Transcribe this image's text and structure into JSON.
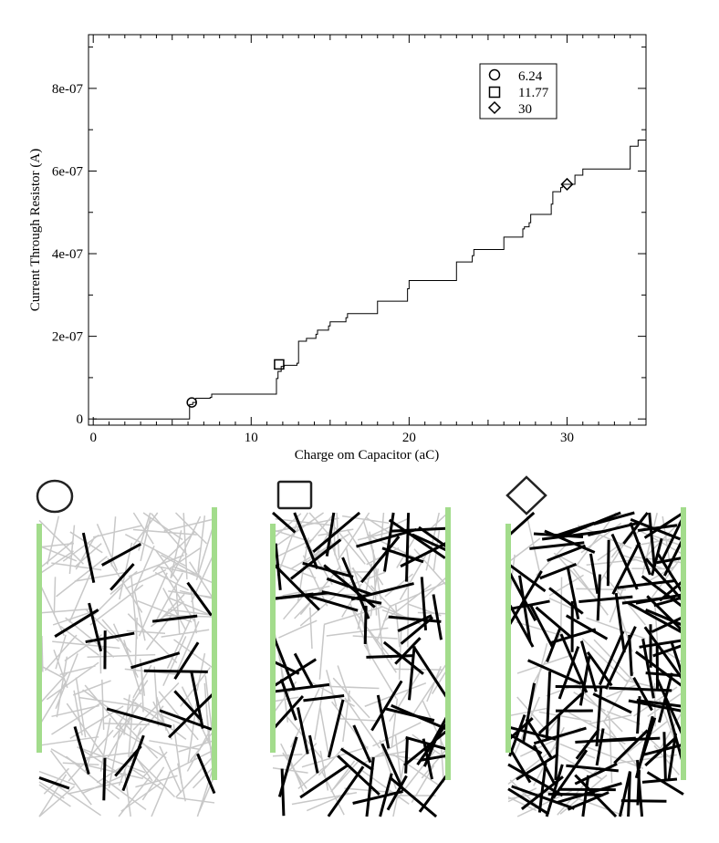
{
  "chart_data": {
    "type": "line",
    "xlabel": "Charge om Capacitor (aC)",
    "ylabel": "Current Through Resistor (A)",
    "xlim": [
      -0.3,
      35
    ],
    "ylim": [
      -1.5e-08,
      9.3e-07
    ],
    "x_ticks": [
      0,
      10,
      20,
      30
    ],
    "x_tick_labels": [
      "0",
      "10",
      "20",
      "30"
    ],
    "y_ticks": [
      0,
      2e-07,
      4e-07,
      6e-07,
      8e-07
    ],
    "y_tick_labels": [
      "0",
      "2e-07",
      "4e-07",
      "6e-07",
      "8e-07"
    ],
    "grid": false,
    "legend_position": "top-right",
    "series": [
      {
        "x": [
          0,
          6.0,
          6.1,
          6.3,
          6.5,
          7.4,
          7.5,
          11.6,
          11.7,
          11.9,
          12.1,
          12.9,
          13.0,
          13.5,
          14.1,
          14.2,
          14.9,
          15.0,
          16.0,
          16.1,
          18.0,
          19.9,
          20.0,
          23.0,
          24.0,
          24.1,
          26.0,
          27.2,
          27.3,
          27.6,
          27.7,
          29.0,
          29.1,
          29.6,
          29.7,
          30.5,
          31.0,
          34.0,
          34.5,
          35.0
        ],
        "y": [
          0.0,
          0.0,
          3.5e-08,
          4e-08,
          5e-08,
          5.2e-08,
          6e-08,
          9.8e-08,
          1.15e-07,
          1.27e-07,
          1.3e-07,
          1.35e-07,
          1.88e-07,
          1.95e-07,
          2.05e-07,
          2.15e-07,
          2.25e-07,
          2.35e-07,
          2.45e-07,
          2.55e-07,
          2.85e-07,
          3.15e-07,
          3.35e-07,
          3.8e-07,
          3.95e-07,
          4.1e-07,
          4.4e-07,
          4.6e-07,
          4.65e-07,
          4.75e-07,
          4.95e-07,
          5.2e-07,
          5.5e-07,
          5.6e-07,
          5.68e-07,
          5.9e-07,
          6.05e-07,
          6.6e-07,
          6.75e-07,
          7e-07
        ],
        "color": "#000000"
      }
    ],
    "markers": [
      {
        "label": "6.24",
        "shape": "circle",
        "x": 6.24,
        "y": 4e-08
      },
      {
        "label": "11.77",
        "shape": "square",
        "x": 11.77,
        "y": 1.32e-07
      },
      {
        "label": "30",
        "shape": "diamond",
        "x": 30,
        "y": 5.68e-07
      }
    ]
  },
  "panels": [
    {
      "marker_icon": "circle-icon",
      "active_fraction": 0.1
    },
    {
      "marker_icon": "square-icon",
      "active_fraction": 0.35
    },
    {
      "marker_icon": "diamond-icon",
      "active_fraction": 0.62
    }
  ],
  "colors": {
    "electrode": "#a3dc8c",
    "inactive_wire": "#c8c8c8",
    "active_wire": "#000000",
    "curve": "#000000"
  }
}
